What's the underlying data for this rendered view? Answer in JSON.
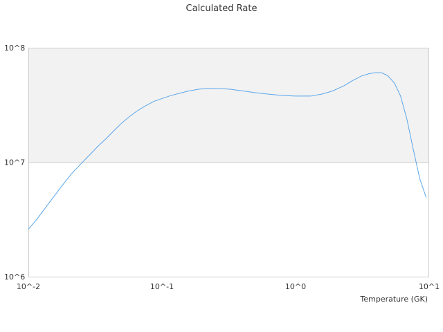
{
  "chart_data": {
    "type": "line",
    "title": "Calculated Rate",
    "xlabel": "Temperature (GK)",
    "ylabel": "",
    "xscale": "log",
    "yscale": "log",
    "xlim": [
      0.01,
      10
    ],
    "ylim": [
      1000000,
      100000000
    ],
    "x_ticks": [
      {
        "value": 0.01,
        "label": "10^-2"
      },
      {
        "value": 0.1,
        "label": "10^-1"
      },
      {
        "value": 1,
        "label": "10^0"
      },
      {
        "value": 10,
        "label": "10^1"
      }
    ],
    "y_ticks": [
      {
        "value": 1000000,
        "label": "10^6"
      },
      {
        "value": 10000000,
        "label": "10^7"
      },
      {
        "value": 100000000,
        "label": "10^8"
      }
    ],
    "shaded_band": [
      10000000,
      100000000
    ],
    "grid": false,
    "colors": {
      "line": "#5aa6ea",
      "band": "#f2f2f2",
      "axis": "#cccccc",
      "text": "#333333"
    },
    "series": [
      {
        "x": [
          0.01,
          0.0114,
          0.0132,
          0.0155,
          0.018,
          0.021,
          0.025,
          0.029,
          0.033,
          0.038,
          0.044,
          0.05,
          0.057,
          0.065,
          0.075,
          0.087,
          0.1,
          0.115,
          0.135,
          0.16,
          0.19,
          0.22,
          0.26,
          0.32,
          0.4,
          0.5,
          0.6,
          0.7,
          0.8,
          0.9,
          1.0,
          1.15,
          1.3,
          1.6,
          1.9,
          2.3,
          2.7,
          3.1,
          3.5,
          3.9,
          4.4,
          4.9,
          5.5,
          6.1,
          6.8,
          7.6,
          8.5,
          9.5
        ],
        "y": [
          2600000,
          3100000,
          3900000,
          5000000,
          6300000,
          7900000,
          9800000,
          11700000,
          13700000,
          16000000,
          19000000,
          22000000,
          25000000,
          28000000,
          31000000,
          34000000,
          36000000,
          38000000,
          40000000,
          42000000,
          43500000,
          44000000,
          44000000,
          43500000,
          42000000,
          40500000,
          39500000,
          38800000,
          38300000,
          38000000,
          37800000,
          37800000,
          37800000,
          39500000,
          42000000,
          46500000,
          52000000,
          56500000,
          59000000,
          60500000,
          60500000,
          57000000,
          49000000,
          38000000,
          24000000,
          13000000,
          7200000,
          4900000
        ]
      }
    ]
  }
}
